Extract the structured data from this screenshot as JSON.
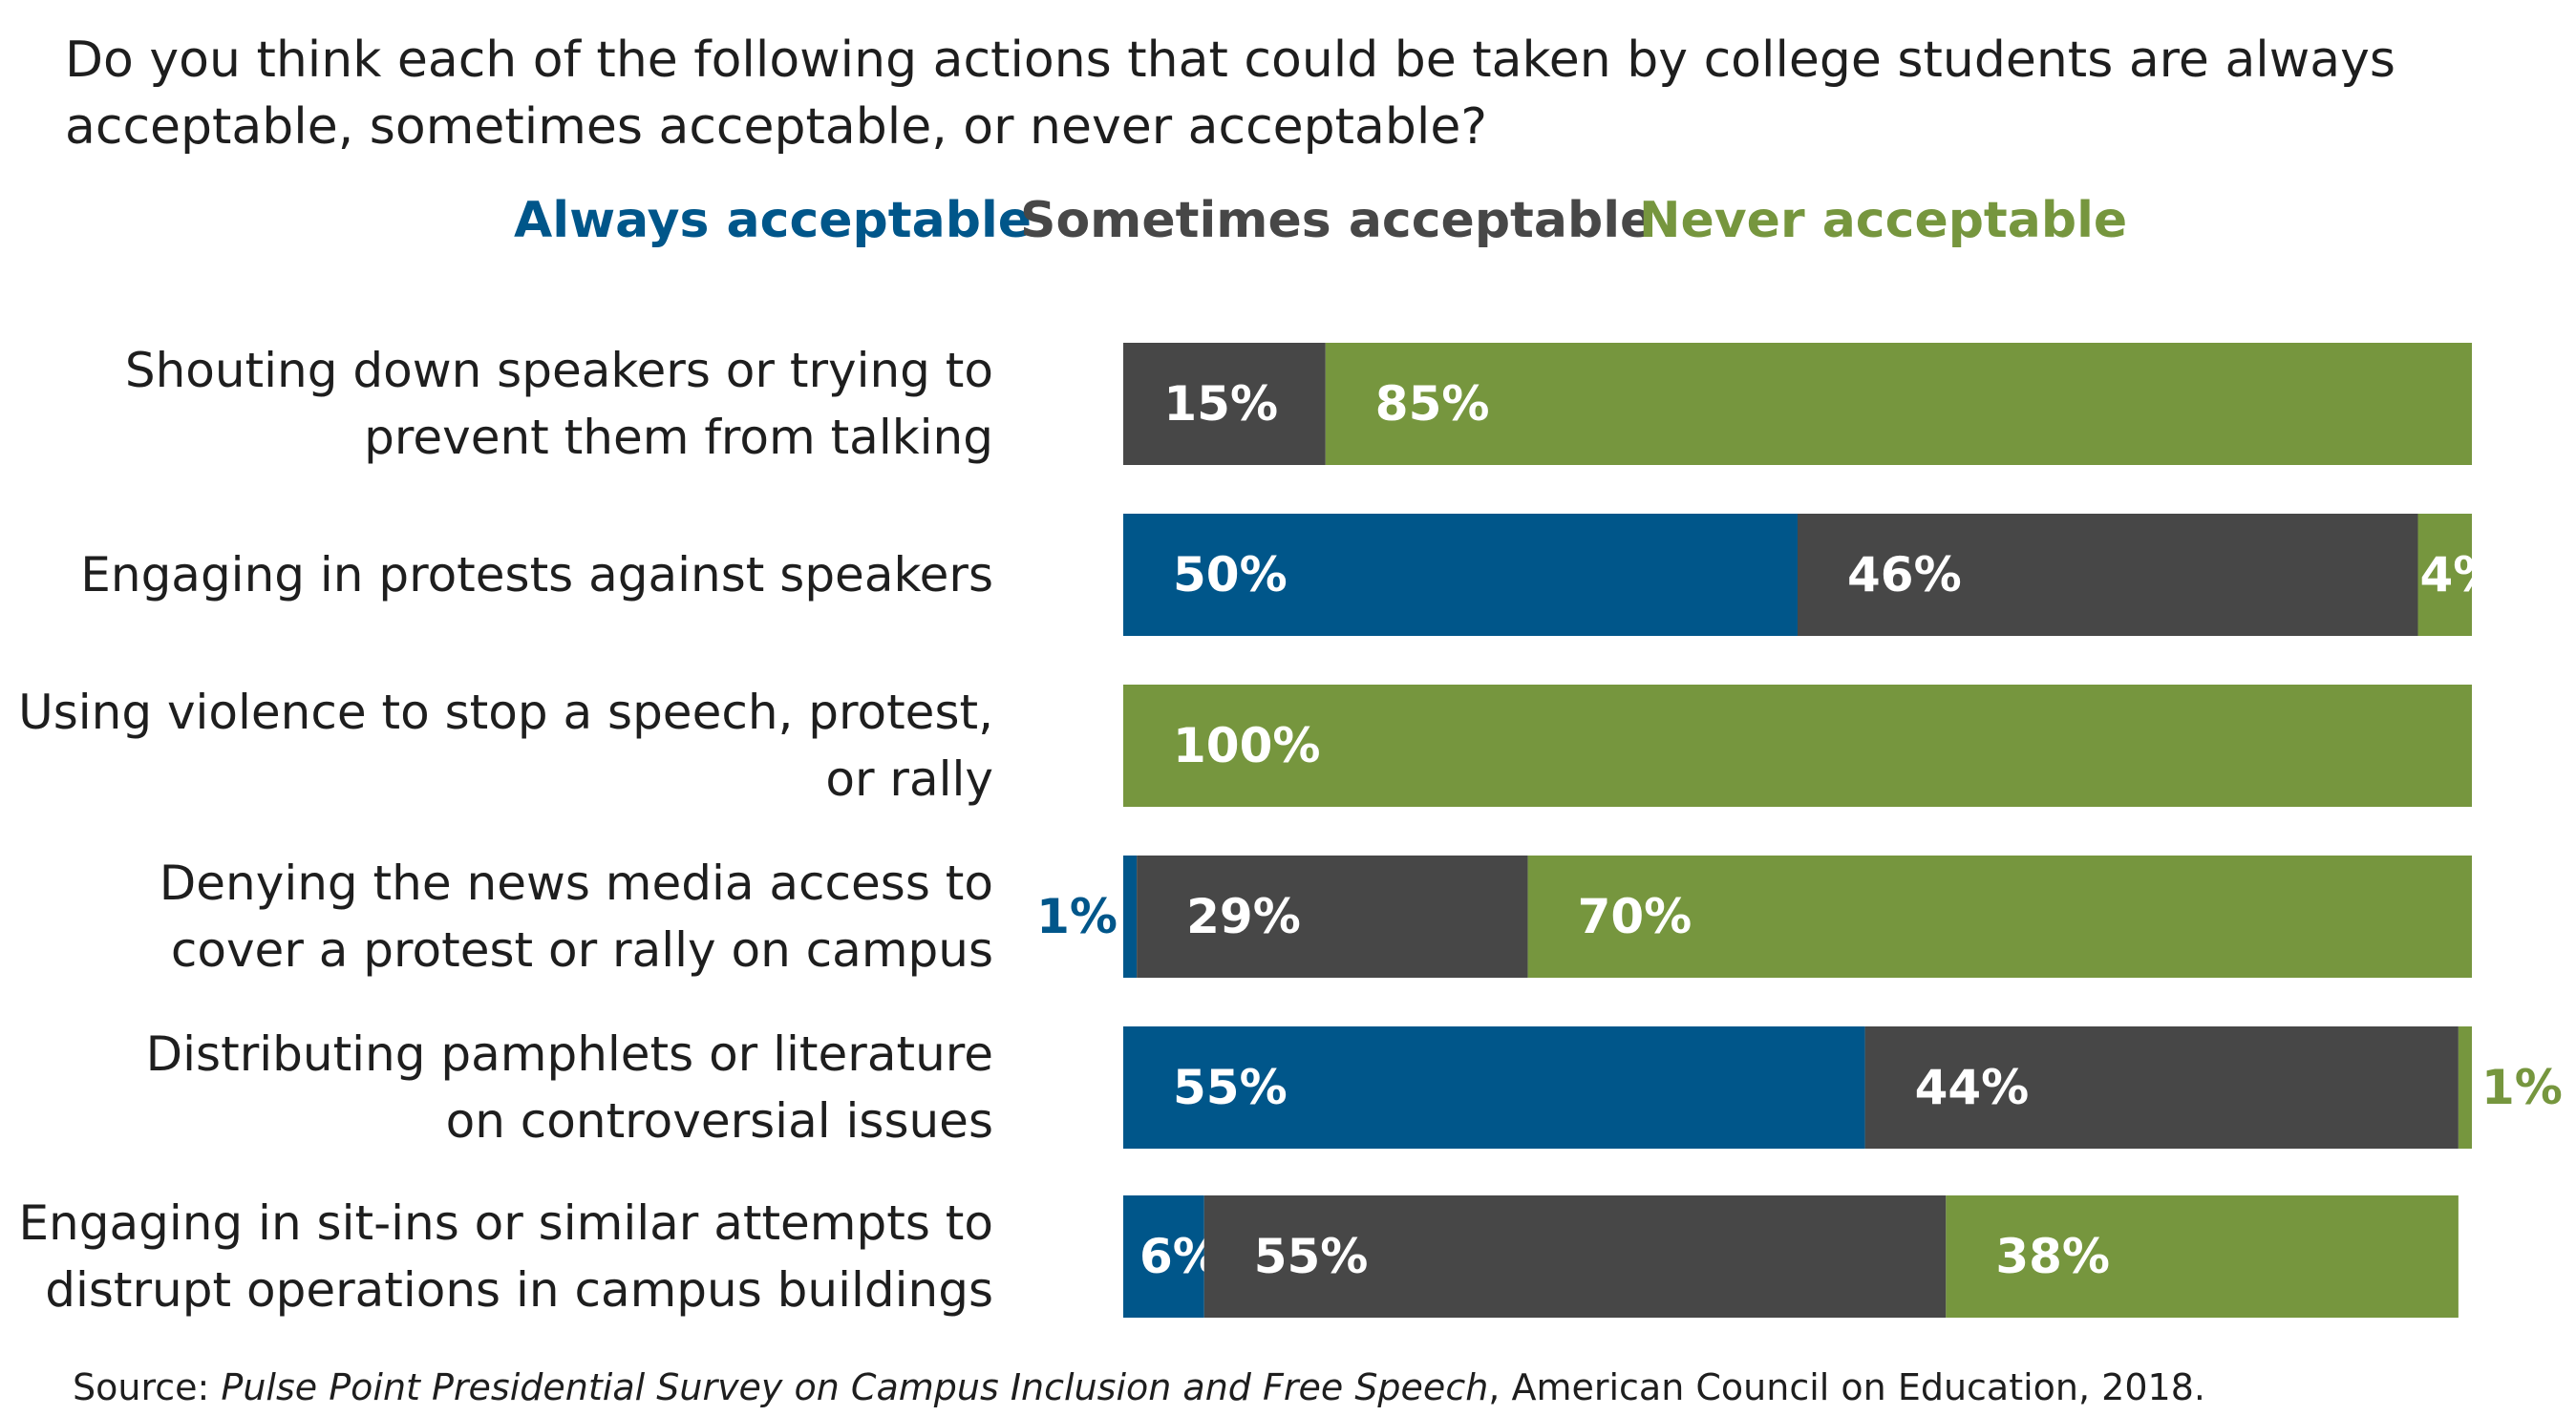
{
  "title": "Do you think each of the following actions that could be taken by college students are always acceptable, sometimes acceptable, or never acceptable?",
  "colors": {
    "always": "#00568a",
    "sometimes": "#474747",
    "never": "#76963e",
    "text": "#1e1e1e",
    "inner_label": "#ffffff"
  },
  "source": {
    "prefix": "Source: ",
    "title": "Pulse Point Presidential Survey on Campus Inclusion and Free Speech",
    "suffix": ", American Council on Education, 2018."
  },
  "chart_data": {
    "type": "bar",
    "orientation": "horizontal",
    "stacked": true,
    "title": "Do you think each of the following actions that could be taken by college students are always acceptable, sometimes acceptable, or never acceptable?",
    "legend": [
      "Always acceptable",
      "Sometimes acceptable",
      "Never acceptable"
    ],
    "legend_position": "top",
    "xlim": [
      0,
      100
    ],
    "categories": [
      [
        "Shouting down speakers or trying to",
        "prevent them from talking"
      ],
      [
        "Engaging in protests against speakers"
      ],
      [
        "Using violence to stop a speech, protest,",
        "or rally"
      ],
      [
        "Denying the news media access to",
        "cover a protest or rally on campus"
      ],
      [
        "Distributing pamphlets or literature",
        "on controversial issues"
      ],
      [
        "Engaging in sit-ins or similar attempts to",
        "distrupt operations in campus buildings"
      ]
    ],
    "series": [
      {
        "name": "Always acceptable",
        "key": "always",
        "values": [
          0,
          50,
          0,
          1,
          55,
          6
        ],
        "labels": [
          "",
          "50%",
          "",
          "1%",
          "55%",
          "6%"
        ]
      },
      {
        "name": "Sometimes acceptable",
        "key": "sometimes",
        "values": [
          15,
          46,
          0,
          29,
          44,
          55
        ],
        "labels": [
          "15%",
          "46%",
          "",
          "29%",
          "44%",
          "55%"
        ]
      },
      {
        "name": "Never acceptable",
        "key": "never",
        "values": [
          85,
          4,
          100,
          70,
          1,
          38
        ],
        "labels": [
          "85%",
          "4%",
          "100%",
          "70%",
          "1%",
          "38%"
        ]
      }
    ]
  }
}
